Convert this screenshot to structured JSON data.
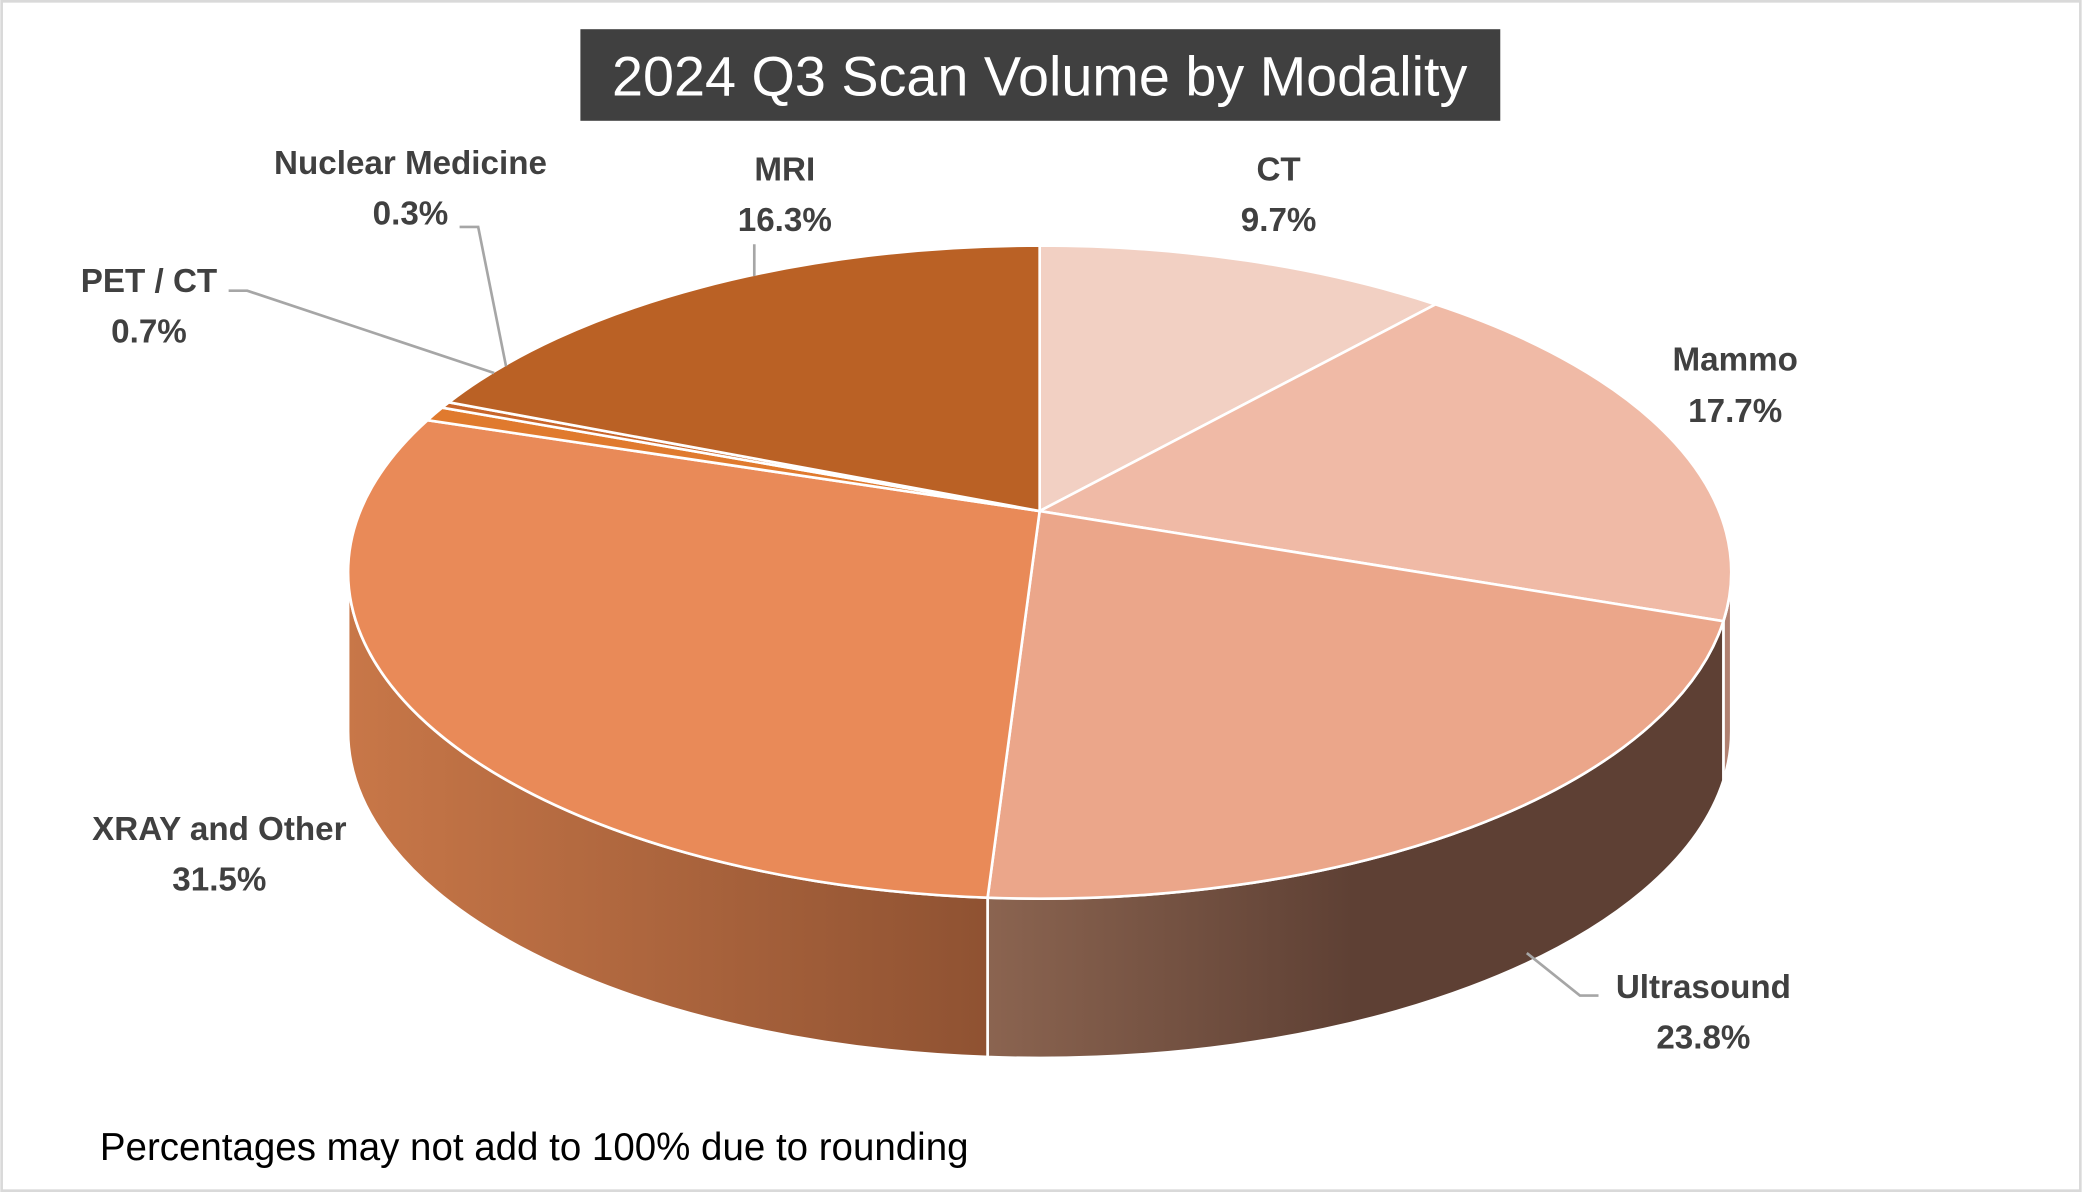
{
  "chart_data": {
    "type": "pie",
    "style": "3d",
    "title": "2024 Q3 Scan Volume by Modality",
    "categories": [
      "CT",
      "Mammo",
      "Ultrasound",
      "XRAY and Other",
      "PET / CT",
      "Nuclear Medicine",
      "MRI"
    ],
    "values": [
      9.7,
      17.7,
      23.8,
      31.5,
      0.7,
      0.3,
      16.3
    ],
    "data_labels": [
      "9.7%",
      "17.7%",
      "23.8%",
      "31.5%",
      "0.7%",
      "0.3%",
      "16.3%"
    ],
    "colors": [
      "#F2D0C3",
      "#F0BAA6",
      "#EBA68A",
      "#E98A58",
      "#E07A2E",
      "#C8652A",
      "#BA6125"
    ],
    "side_colors": [
      [
        "#D9B6A8",
        "#C9A090"
      ],
      [
        "#C9A090",
        "#B08070"
      ],
      [
        "#8B6450",
        "#5E4034"
      ],
      [
        "#C87748",
        "#8F5232"
      ],
      [
        "#B85A20",
        "#A04E1C"
      ],
      [
        "#A04E1C",
        "#8A4418"
      ],
      [
        "#8A4418",
        "#7A3C14"
      ]
    ],
    "legend": "none",
    "footnote": "Percentages may not add to 100% due to rounding"
  }
}
